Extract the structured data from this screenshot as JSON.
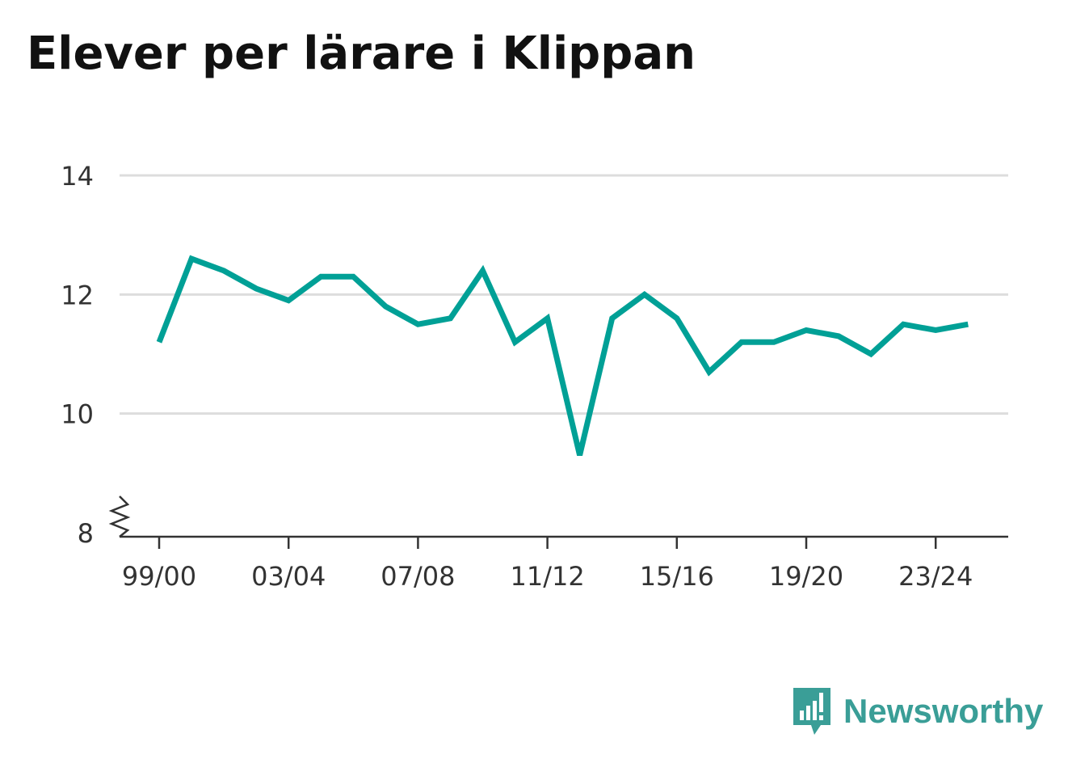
{
  "title": "Elever per lärare i Klippan",
  "brand": {
    "name": "Newsworthy",
    "icon": "newsworthy-logo-icon"
  },
  "colors": {
    "line": "#00a096",
    "grid": "#dddddd",
    "axis": "#333333",
    "brand": "#3a9e97"
  },
  "chart_data": {
    "type": "line",
    "title": "Elever per lärare i Klippan",
    "xlabel": "",
    "ylabel": "",
    "ylim": [
      8,
      14
    ],
    "y_ticks": [
      8,
      10,
      12,
      14
    ],
    "y_axis_break": true,
    "grid": true,
    "categories": [
      "99/00",
      "00/01",
      "01/02",
      "02/03",
      "03/04",
      "04/05",
      "05/06",
      "06/07",
      "07/08",
      "08/09",
      "09/10",
      "10/11",
      "11/12",
      "12/13",
      "13/14",
      "14/15",
      "15/16",
      "16/17",
      "17/18",
      "18/19",
      "19/20",
      "20/21",
      "21/22",
      "22/23",
      "23/24",
      "24/25"
    ],
    "x_tick_labels": [
      "99/00",
      "03/04",
      "07/08",
      "11/12",
      "15/16",
      "19/20",
      "23/24"
    ],
    "x_tick_indices": [
      0,
      4,
      8,
      12,
      16,
      20,
      24
    ],
    "series": [
      {
        "values": [
          11.2,
          12.6,
          12.4,
          12.1,
          11.9,
          12.3,
          12.3,
          11.8,
          11.5,
          11.6,
          12.4,
          11.2,
          11.6,
          9.3,
          11.6,
          12.0,
          11.6,
          10.7,
          11.2,
          11.2,
          11.4,
          11.3,
          11.0,
          11.5,
          11.4,
          11.5
        ]
      }
    ]
  }
}
